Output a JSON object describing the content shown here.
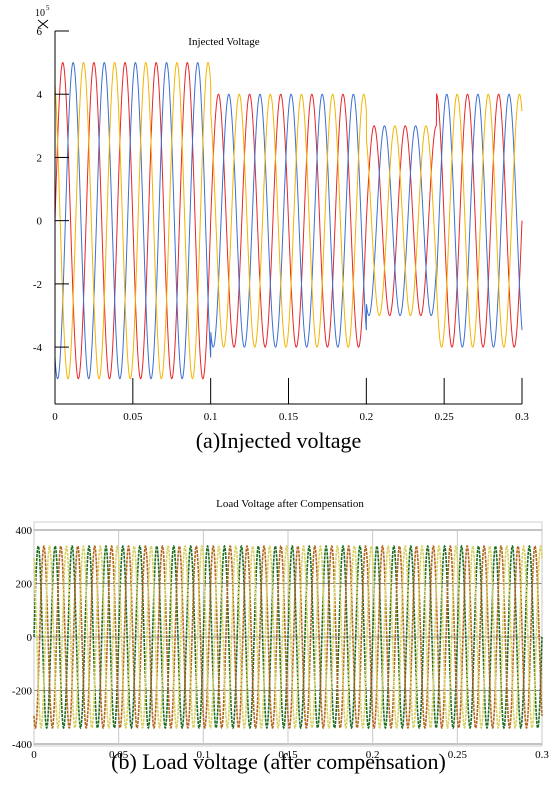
{
  "chart_data": [
    {
      "type": "line",
      "title": "Injected Voltage",
      "exponent_label": "10",
      "exponent_power": "5",
      "caption": "(a)Injected voltage",
      "xlim": [
        0,
        0.3
      ],
      "ylim": [
        -5.8,
        6
      ],
      "x_ticks": [
        "0",
        "0.05",
        "0.1",
        "0.15",
        "0.2",
        "0.25",
        "0.3"
      ],
      "x_tick_values": [
        0,
        0.05,
        0.1,
        0.15,
        0.2,
        0.25,
        0.3
      ],
      "y_ticks": [
        "6",
        "4",
        "2",
        "0",
        "-2",
        "-4"
      ],
      "y_tick_values": [
        6,
        4,
        2,
        0,
        -2,
        -4
      ],
      "frequency_hz": 50,
      "envelope": [
        {
          "x_start": 0,
          "x_end": 0.1,
          "amplitude": 5
        },
        {
          "x_start": 0.1,
          "x_end": 0.2,
          "amplitude": 4
        },
        {
          "x_start": 0.2,
          "x_end": 0.245,
          "amplitude": 3
        },
        {
          "x_start": 0.245,
          "x_end": 0.3,
          "amplitude": 4
        }
      ],
      "series": [
        {
          "phase_deg": 0,
          "color": "#e8262a"
        },
        {
          "phase_deg": -120,
          "color": "#3b6fd1"
        },
        {
          "phase_deg": 120,
          "color": "#f4b400"
        }
      ],
      "grid": false
    },
    {
      "type": "line",
      "title": "Load Voltage after Compensation",
      "caption": "(b) Load voltage (after compensation)",
      "xlim": [
        0,
        0.3
      ],
      "ylim": [
        -400,
        400
      ],
      "x_ticks": [
        "0",
        "0.05",
        "0.1",
        "0.15",
        "0.2",
        "0.25",
        "0.3"
      ],
      "x_tick_values": [
        0,
        0.05,
        0.1,
        0.15,
        0.2,
        0.25,
        0.3
      ],
      "y_ticks": [
        "400",
        "200",
        "0",
        "-200",
        "-400"
      ],
      "y_tick_values": [
        400,
        200,
        0,
        -200,
        -400
      ],
      "frequency_hz": 100,
      "amplitude": 340,
      "series": [
        {
          "phase_deg": 0,
          "color": "#1e6b1e"
        },
        {
          "phase_deg": -120,
          "color": "#b5651d"
        },
        {
          "phase_deg": 120,
          "color": "#d8d060"
        }
      ],
      "grid": true
    }
  ]
}
